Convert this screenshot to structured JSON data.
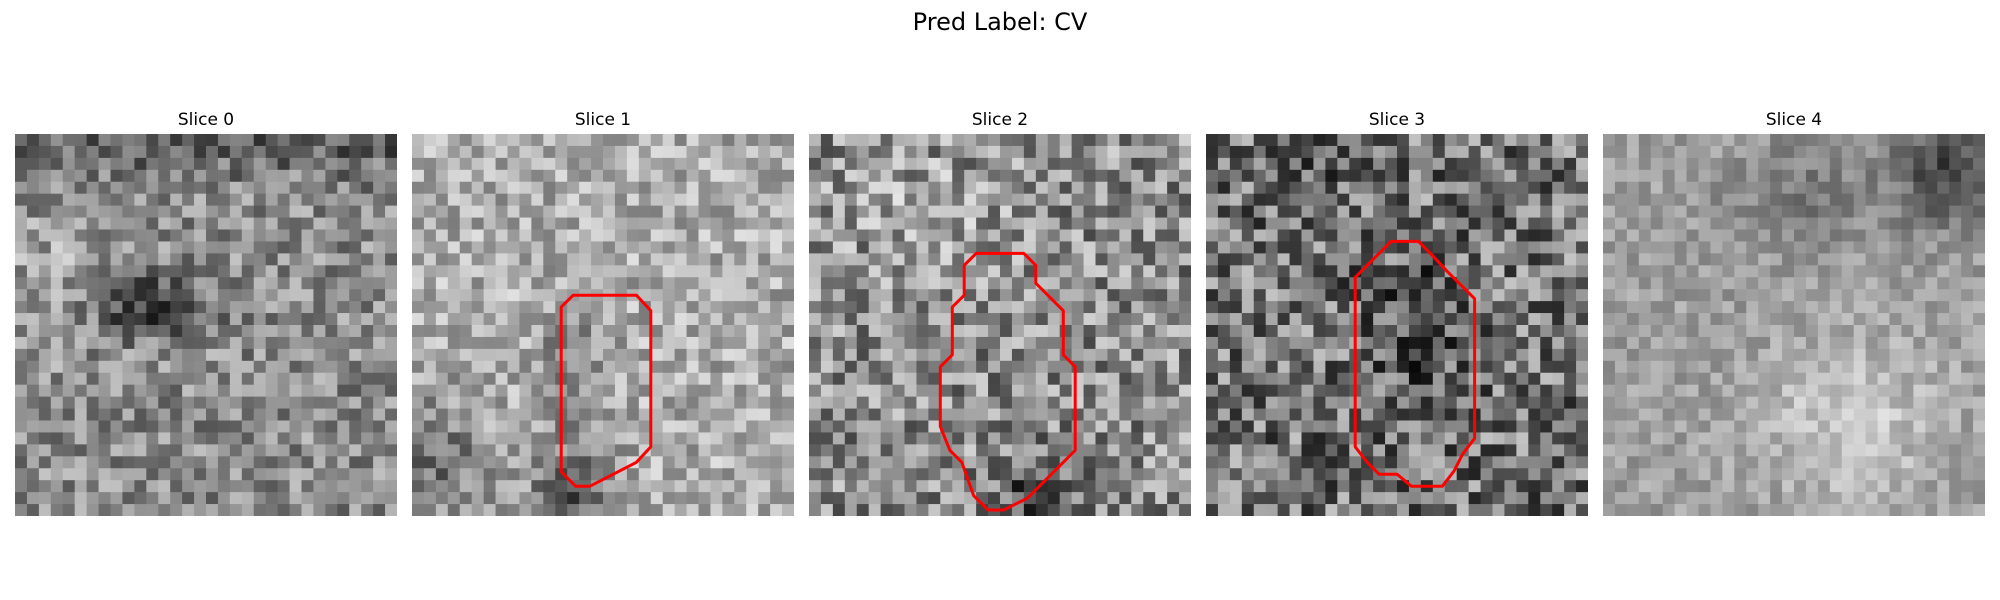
{
  "figure": {
    "title": "Pred Label: CV",
    "outline_color": "#ff0000"
  },
  "slices": [
    {
      "title": "Slice 0",
      "has_contour": false
    },
    {
      "title": "Slice 1",
      "has_contour": true
    },
    {
      "title": "Slice 2",
      "has_contour": true
    },
    {
      "title": "Slice 3",
      "has_contour": true
    },
    {
      "title": "Slice 4",
      "has_contour": false
    }
  ]
}
